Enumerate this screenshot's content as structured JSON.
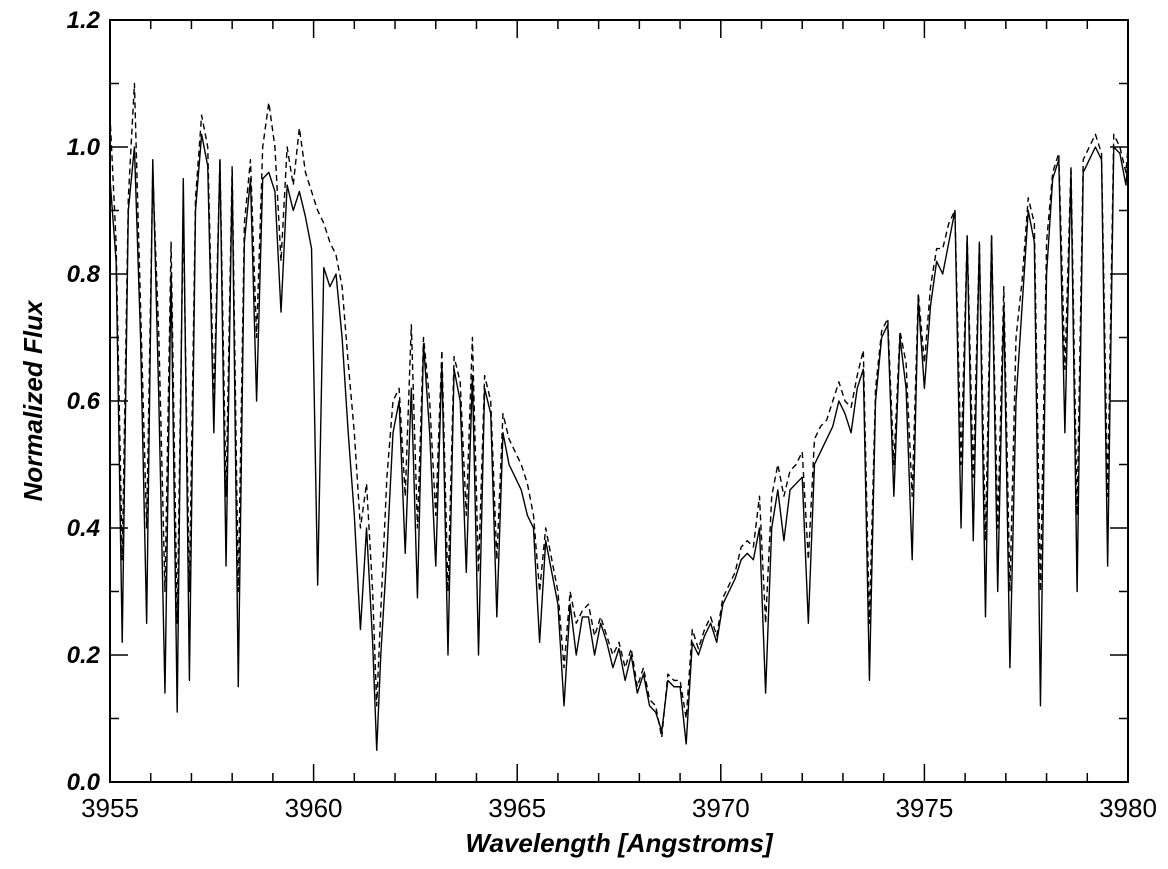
{
  "chart_data": {
    "type": "line",
    "title": "",
    "xlabel": "Wavelength [Angstroms]",
    "ylabel": "Normalized Flux",
    "xlim": [
      3955,
      3980
    ],
    "ylim": [
      0.0,
      1.2
    ],
    "x_ticks": [
      3955,
      3960,
      3965,
      3970,
      3975,
      3980
    ],
    "x_tick_labels": [
      "3955",
      "3960",
      "3965",
      "3970",
      "3975",
      "3980"
    ],
    "y_ticks": [
      0.0,
      0.2,
      0.4,
      0.6,
      0.8,
      1.0,
      1.2
    ],
    "y_tick_labels": [
      "0.0",
      "0.2",
      "0.4",
      "0.6",
      "0.8",
      "1.0",
      "1.2"
    ],
    "grid": false,
    "legend": "none",
    "series": [
      {
        "style": "solid",
        "color": "#000000",
        "x": [
          3955.0,
          3955.15,
          3955.3,
          3955.45,
          3955.6,
          3955.75,
          3955.9,
          3956.05,
          3956.2,
          3956.35,
          3956.5,
          3956.65,
          3956.8,
          3956.95,
          3957.1,
          3957.25,
          3957.4,
          3957.55,
          3957.7,
          3957.85,
          3958.0,
          3958.15,
          3958.3,
          3958.45,
          3958.6,
          3958.75,
          3958.9,
          3959.05,
          3959.2,
          3959.35,
          3959.5,
          3959.65,
          3959.8,
          3959.95,
          3960.1,
          3960.25,
          3960.4,
          3960.55,
          3960.7,
          3960.85,
          3961.0,
          3961.15,
          3961.3,
          3961.45,
          3961.55,
          3961.65,
          3961.8,
          3961.95,
          3962.1,
          3962.25,
          3962.4,
          3962.55,
          3962.7,
          3962.85,
          3963.0,
          3963.15,
          3963.3,
          3963.45,
          3963.6,
          3963.75,
          3963.9,
          3964.05,
          3964.2,
          3964.35,
          3964.5,
          3964.65,
          3964.8,
          3964.95,
          3965.1,
          3965.25,
          3965.4,
          3965.55,
          3965.7,
          3965.85,
          3966.0,
          3966.15,
          3966.3,
          3966.45,
          3966.6,
          3966.75,
          3966.9,
          3967.05,
          3967.2,
          3967.35,
          3967.5,
          3967.65,
          3967.8,
          3967.95,
          3968.1,
          3968.25,
          3968.4,
          3968.55,
          3968.7,
          3968.85,
          3969.0,
          3969.15,
          3969.3,
          3969.45,
          3969.6,
          3969.75,
          3969.9,
          3970.05,
          3970.2,
          3970.35,
          3970.5,
          3970.65,
          3970.8,
          3970.95,
          3971.1,
          3971.25,
          3971.4,
          3971.55,
          3971.7,
          3971.85,
          3972.0,
          3972.15,
          3972.3,
          3972.45,
          3972.6,
          3972.75,
          3972.9,
          3973.05,
          3973.2,
          3973.35,
          3973.5,
          3973.65,
          3973.8,
          3973.95,
          3974.1,
          3974.25,
          3974.4,
          3974.55,
          3974.7,
          3974.85,
          3975.0,
          3975.15,
          3975.3,
          3975.45,
          3975.6,
          3975.75,
          3975.9,
          3976.05,
          3976.2,
          3976.35,
          3976.5,
          3976.65,
          3976.8,
          3976.95,
          3977.1,
          3977.25,
          3977.4,
          3977.55,
          3977.7,
          3977.85,
          3978.0,
          3978.15,
          3978.3,
          3978.45,
          3978.6,
          3978.75,
          3978.9,
          3979.05,
          3979.2,
          3979.35,
          3979.5,
          3979.65,
          3979.8,
          3979.95,
          3980.0
        ],
        "y": [
          0.95,
          0.82,
          0.22,
          0.9,
          1.0,
          0.7,
          0.25,
          0.98,
          0.6,
          0.14,
          0.8,
          0.11,
          0.95,
          0.16,
          0.9,
          1.02,
          0.97,
          0.55,
          0.98,
          0.34,
          0.96,
          0.15,
          0.85,
          0.95,
          0.6,
          0.95,
          0.96,
          0.93,
          0.74,
          0.94,
          0.9,
          0.93,
          0.89,
          0.84,
          0.31,
          0.81,
          0.78,
          0.8,
          0.7,
          0.55,
          0.42,
          0.24,
          0.4,
          0.22,
          0.05,
          0.2,
          0.36,
          0.55,
          0.6,
          0.36,
          0.62,
          0.29,
          0.69,
          0.55,
          0.34,
          0.66,
          0.2,
          0.65,
          0.6,
          0.33,
          0.64,
          0.2,
          0.62,
          0.58,
          0.26,
          0.55,
          0.5,
          0.48,
          0.46,
          0.42,
          0.4,
          0.22,
          0.38,
          0.33,
          0.28,
          0.12,
          0.28,
          0.2,
          0.26,
          0.26,
          0.2,
          0.25,
          0.22,
          0.18,
          0.21,
          0.16,
          0.2,
          0.14,
          0.17,
          0.12,
          0.11,
          0.08,
          0.16,
          0.15,
          0.15,
          0.06,
          0.22,
          0.2,
          0.23,
          0.25,
          0.22,
          0.28,
          0.3,
          0.32,
          0.35,
          0.36,
          0.35,
          0.4,
          0.14,
          0.4,
          0.46,
          0.38,
          0.46,
          0.47,
          0.48,
          0.25,
          0.5,
          0.52,
          0.54,
          0.56,
          0.6,
          0.58,
          0.55,
          0.62,
          0.65,
          0.16,
          0.6,
          0.7,
          0.72,
          0.45,
          0.7,
          0.62,
          0.35,
          0.76,
          0.62,
          0.75,
          0.82,
          0.8,
          0.85,
          0.9,
          0.4,
          0.86,
          0.38,
          0.85,
          0.26,
          0.86,
          0.3,
          0.75,
          0.18,
          0.6,
          0.75,
          0.9,
          0.85,
          0.12,
          0.8,
          0.95,
          0.98,
          0.55,
          0.96,
          0.3,
          0.96,
          0.98,
          1.0,
          0.98,
          0.34,
          1.0,
          0.99,
          0.94,
          0.98
        ]
      },
      {
        "style": "dashed",
        "color": "#000000",
        "x": [
          3955.0,
          3955.15,
          3955.3,
          3955.45,
          3955.6,
          3955.75,
          3955.9,
          3956.05,
          3956.2,
          3956.35,
          3956.5,
          3956.65,
          3956.8,
          3956.95,
          3957.1,
          3957.25,
          3957.4,
          3957.55,
          3957.7,
          3957.85,
          3958.0,
          3958.15,
          3958.3,
          3958.45,
          3958.6,
          3958.75,
          3958.9,
          3959.05,
          3959.2,
          3959.35,
          3959.5,
          3959.65,
          3959.8,
          3959.95,
          3960.1,
          3960.25,
          3960.4,
          3960.55,
          3960.7,
          3960.85,
          3961.0,
          3961.15,
          3961.3,
          3961.45,
          3961.55,
          3961.65,
          3961.8,
          3961.95,
          3962.1,
          3962.25,
          3962.4,
          3962.55,
          3962.7,
          3962.85,
          3963.0,
          3963.15,
          3963.3,
          3963.45,
          3963.6,
          3963.75,
          3963.9,
          3964.05,
          3964.2,
          3964.35,
          3964.5,
          3964.65,
          3964.8,
          3964.95,
          3965.1,
          3965.25,
          3965.4,
          3965.55,
          3965.7,
          3965.85,
          3966.0,
          3966.15,
          3966.3,
          3966.45,
          3966.6,
          3966.75,
          3966.9,
          3967.05,
          3967.2,
          3967.35,
          3967.5,
          3967.65,
          3967.8,
          3967.95,
          3968.1,
          3968.25,
          3968.4,
          3968.55,
          3968.7,
          3968.85,
          3969.0,
          3969.15,
          3969.3,
          3969.45,
          3969.6,
          3969.75,
          3969.9,
          3970.05,
          3970.2,
          3970.35,
          3970.5,
          3970.65,
          3970.8,
          3970.95,
          3971.1,
          3971.25,
          3971.4,
          3971.55,
          3971.7,
          3971.85,
          3972.0,
          3972.15,
          3972.3,
          3972.45,
          3972.6,
          3972.75,
          3972.9,
          3973.05,
          3973.2,
          3973.35,
          3973.5,
          3973.65,
          3973.8,
          3973.95,
          3974.1,
          3974.25,
          3974.4,
          3974.55,
          3974.7,
          3974.85,
          3975.0,
          3975.15,
          3975.3,
          3975.45,
          3975.6,
          3975.75,
          3975.9,
          3976.05,
          3976.2,
          3976.35,
          3976.5,
          3976.65,
          3976.8,
          3976.95,
          3977.1,
          3977.25,
          3977.4,
          3977.55,
          3977.7,
          3977.85,
          3978.0,
          3978.15,
          3978.3,
          3978.45,
          3978.6,
          3978.75,
          3978.9,
          3979.05,
          3979.2,
          3979.35,
          3979.5,
          3979.65,
          3979.8,
          3979.95,
          3980.0
        ],
        "y": [
          1.05,
          0.85,
          0.35,
          0.92,
          1.1,
          0.75,
          0.4,
          0.96,
          0.7,
          0.3,
          0.85,
          0.25,
          0.9,
          0.3,
          0.92,
          1.05,
          1.0,
          0.6,
          0.98,
          0.45,
          0.97,
          0.3,
          0.88,
          0.98,
          0.7,
          1.0,
          1.07,
          1.0,
          0.82,
          1.0,
          0.94,
          1.03,
          0.96,
          0.93,
          0.9,
          0.88,
          0.85,
          0.83,
          0.78,
          0.66,
          0.55,
          0.4,
          0.47,
          0.3,
          0.12,
          0.27,
          0.48,
          0.6,
          0.62,
          0.45,
          0.72,
          0.4,
          0.7,
          0.6,
          0.42,
          0.68,
          0.3,
          0.67,
          0.63,
          0.42,
          0.7,
          0.33,
          0.64,
          0.6,
          0.35,
          0.58,
          0.54,
          0.52,
          0.5,
          0.47,
          0.42,
          0.3,
          0.4,
          0.35,
          0.3,
          0.18,
          0.3,
          0.25,
          0.27,
          0.28,
          0.23,
          0.26,
          0.23,
          0.2,
          0.22,
          0.18,
          0.21,
          0.15,
          0.18,
          0.13,
          0.12,
          0.07,
          0.17,
          0.16,
          0.16,
          0.1,
          0.24,
          0.21,
          0.24,
          0.26,
          0.23,
          0.29,
          0.31,
          0.33,
          0.37,
          0.38,
          0.37,
          0.45,
          0.25,
          0.45,
          0.5,
          0.45,
          0.49,
          0.5,
          0.52,
          0.35,
          0.54,
          0.56,
          0.57,
          0.6,
          0.63,
          0.6,
          0.59,
          0.64,
          0.68,
          0.25,
          0.62,
          0.71,
          0.73,
          0.5,
          0.71,
          0.66,
          0.45,
          0.77,
          0.66,
          0.78,
          0.84,
          0.84,
          0.88,
          0.9,
          0.5,
          0.86,
          0.48,
          0.85,
          0.38,
          0.86,
          0.4,
          0.78,
          0.3,
          0.7,
          0.79,
          0.92,
          0.88,
          0.3,
          0.85,
          0.96,
          0.99,
          0.65,
          0.97,
          0.42,
          0.98,
          1.0,
          1.02,
          0.99,
          0.45,
          1.02,
          1.0,
          0.96,
          1.0
        ]
      }
    ]
  }
}
